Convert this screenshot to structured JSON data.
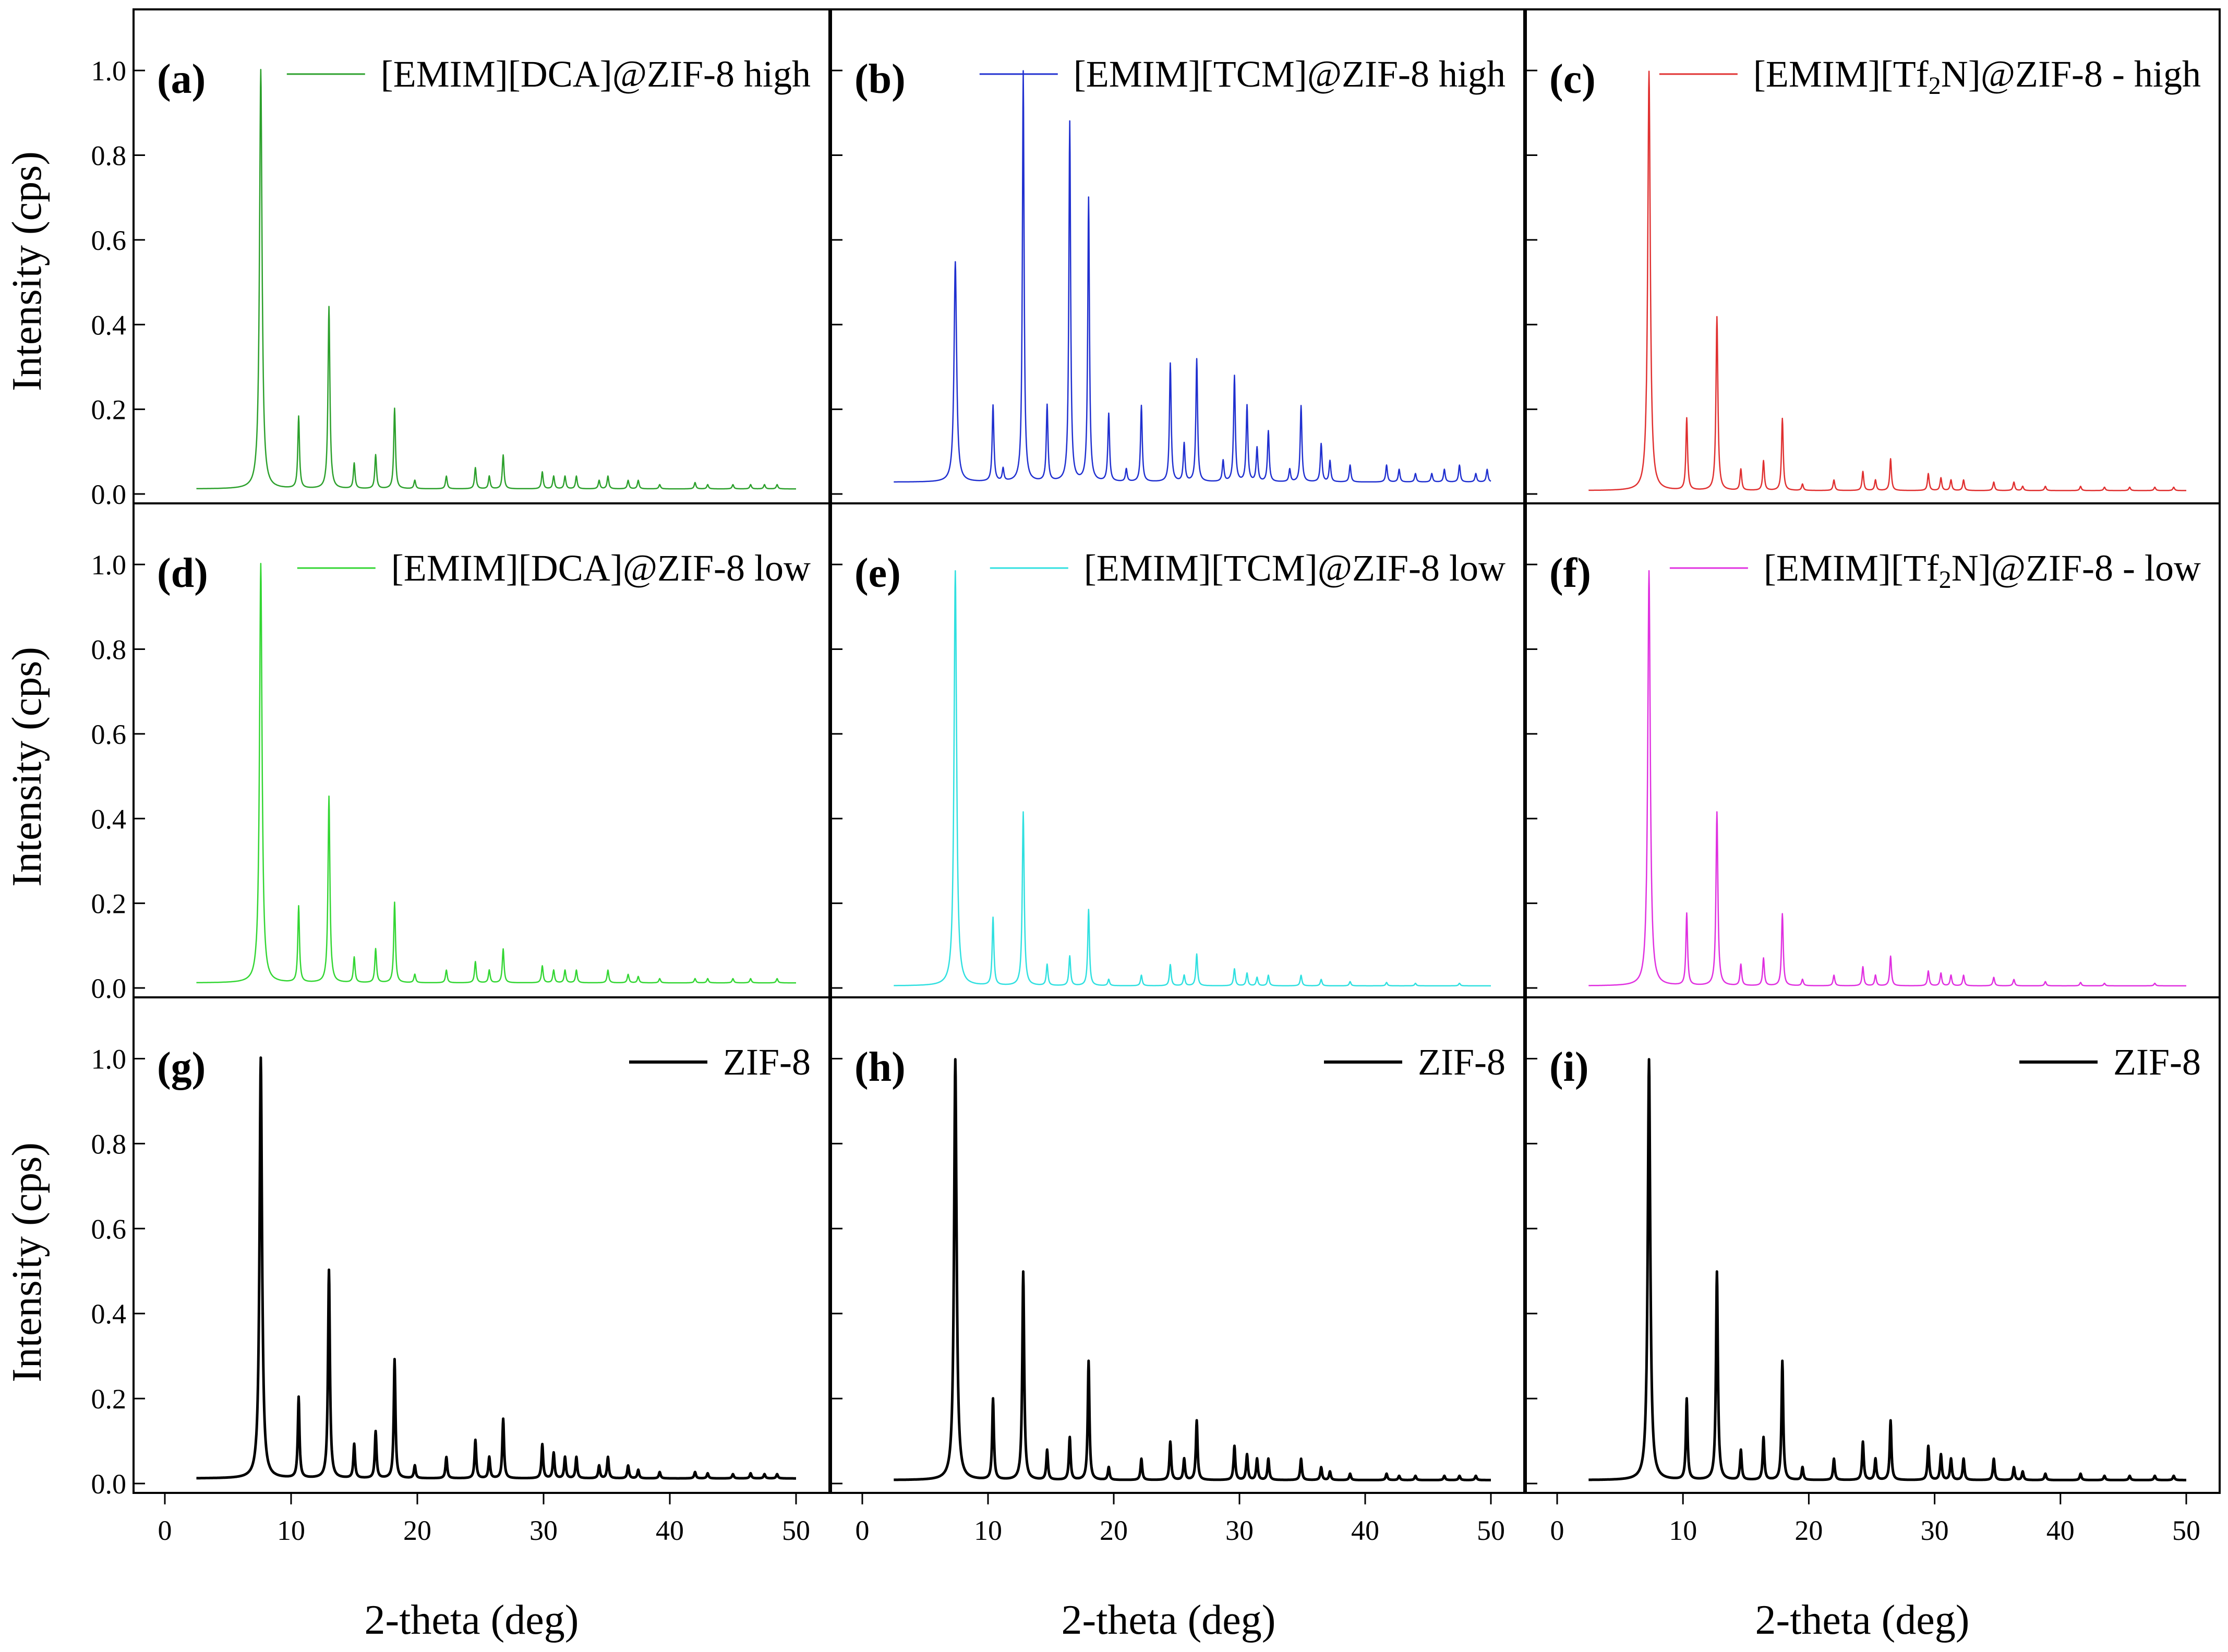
{
  "figure": {
    "y_axis_title": "Intensity (cps)",
    "x_axis_title": "2-theta (deg)"
  },
  "chart_data": {
    "type": "line",
    "xlim": [
      0,
      50
    ],
    "ylim": [
      0,
      1.1
    ],
    "x_ticks": [
      0,
      10,
      20,
      30,
      40,
      50
    ],
    "y_ticks": [
      "0.0",
      "0.2",
      "0.4",
      "0.6",
      "0.8",
      "1.0"
    ],
    "xlabel": "2-theta (deg)",
    "ylabel": "Intensity (cps)",
    "x_start": 2.5,
    "panels": [
      {
        "id": "a",
        "label": "(a)",
        "legend": "[EMIM][DCA]@ZIF-8 high",
        "color": "#2ca02c",
        "baseline": 0.012,
        "peaks": [
          [
            7.6,
            0.99,
            0.12
          ],
          [
            10.6,
            0.17,
            0.08
          ],
          [
            13.0,
            0.43,
            0.09
          ],
          [
            15.0,
            0.06,
            0.08
          ],
          [
            16.7,
            0.08,
            0.08
          ],
          [
            18.2,
            0.19,
            0.08
          ],
          [
            19.8,
            0.02,
            0.08
          ],
          [
            22.3,
            0.03,
            0.08
          ],
          [
            24.6,
            0.05,
            0.08
          ],
          [
            25.7,
            0.03,
            0.08
          ],
          [
            26.8,
            0.08,
            0.08
          ],
          [
            29.9,
            0.04,
            0.08
          ],
          [
            30.8,
            0.03,
            0.08
          ],
          [
            31.7,
            0.03,
            0.08
          ],
          [
            32.6,
            0.03,
            0.08
          ],
          [
            34.4,
            0.02,
            0.08
          ],
          [
            35.1,
            0.03,
            0.08
          ],
          [
            36.7,
            0.02,
            0.08
          ],
          [
            37.5,
            0.02,
            0.08
          ],
          [
            39.2,
            0.01,
            0.08
          ],
          [
            42.0,
            0.015,
            0.08
          ],
          [
            43.0,
            0.01,
            0.08
          ],
          [
            45.0,
            0.01,
            0.08
          ],
          [
            46.4,
            0.01,
            0.08
          ],
          [
            47.5,
            0.01,
            0.08
          ],
          [
            48.5,
            0.01,
            0.08
          ]
        ]
      },
      {
        "id": "b",
        "label": "(b)",
        "legend": "[EMIM][TCM]@ZIF-8 high",
        "color": "#2030d0",
        "baseline": 0.028,
        "peaks": [
          [
            7.4,
            0.52,
            0.12
          ],
          [
            10.4,
            0.18,
            0.08
          ],
          [
            11.2,
            0.03,
            0.08
          ],
          [
            12.8,
            0.97,
            0.08
          ],
          [
            14.7,
            0.18,
            0.08
          ],
          [
            16.5,
            0.85,
            0.08
          ],
          [
            18.0,
            0.67,
            0.08
          ],
          [
            19.6,
            0.16,
            0.08
          ],
          [
            21.0,
            0.03,
            0.08
          ],
          [
            22.2,
            0.18,
            0.08
          ],
          [
            24.5,
            0.28,
            0.08
          ],
          [
            25.6,
            0.09,
            0.08
          ],
          [
            26.6,
            0.29,
            0.08
          ],
          [
            28.7,
            0.05,
            0.08
          ],
          [
            29.6,
            0.25,
            0.08
          ],
          [
            30.6,
            0.18,
            0.08
          ],
          [
            31.4,
            0.08,
            0.08
          ],
          [
            32.3,
            0.12,
            0.08
          ],
          [
            34.0,
            0.03,
            0.08
          ],
          [
            34.9,
            0.18,
            0.08
          ],
          [
            36.5,
            0.09,
            0.08
          ],
          [
            37.2,
            0.05,
            0.08
          ],
          [
            38.8,
            0.04,
            0.08
          ],
          [
            41.7,
            0.04,
            0.08
          ],
          [
            42.7,
            0.03,
            0.08
          ],
          [
            44.0,
            0.02,
            0.08
          ],
          [
            45.3,
            0.02,
            0.08
          ],
          [
            46.3,
            0.03,
            0.08
          ],
          [
            47.5,
            0.04,
            0.08
          ],
          [
            48.8,
            0.02,
            0.08
          ],
          [
            49.7,
            0.03,
            0.08
          ]
        ]
      },
      {
        "id": "c",
        "label": "(c)",
        "legend": "[EMIM][Tf2N]@ZIF-8 - high",
        "color": "#e03030",
        "baseline": 0.008,
        "peaks": [
          [
            7.3,
            0.99,
            0.12
          ],
          [
            10.3,
            0.17,
            0.08
          ],
          [
            12.7,
            0.41,
            0.09
          ],
          [
            14.6,
            0.05,
            0.08
          ],
          [
            16.4,
            0.07,
            0.08
          ],
          [
            17.9,
            0.17,
            0.08
          ],
          [
            19.5,
            0.015,
            0.08
          ],
          [
            22.0,
            0.025,
            0.08
          ],
          [
            24.3,
            0.045,
            0.08
          ],
          [
            25.3,
            0.025,
            0.08
          ],
          [
            26.5,
            0.075,
            0.08
          ],
          [
            29.5,
            0.04,
            0.08
          ],
          [
            30.5,
            0.03,
            0.08
          ],
          [
            31.3,
            0.025,
            0.08
          ],
          [
            32.3,
            0.025,
            0.08
          ],
          [
            34.7,
            0.02,
            0.08
          ],
          [
            36.3,
            0.02,
            0.08
          ],
          [
            37.0,
            0.01,
            0.08
          ],
          [
            38.8,
            0.01,
            0.08
          ],
          [
            41.6,
            0.01,
            0.08
          ],
          [
            43.5,
            0.008,
            0.08
          ],
          [
            45.5,
            0.008,
            0.08
          ],
          [
            47.5,
            0.008,
            0.08
          ],
          [
            49.0,
            0.008,
            0.08
          ]
        ]
      },
      {
        "id": "d",
        "label": "(d)",
        "legend": "[EMIM][DCA]@ZIF-8 low",
        "color": "#33d633",
        "baseline": 0.012,
        "peaks": [
          [
            7.6,
            0.99,
            0.12
          ],
          [
            10.6,
            0.18,
            0.08
          ],
          [
            13.0,
            0.44,
            0.09
          ],
          [
            15.0,
            0.06,
            0.08
          ],
          [
            16.7,
            0.08,
            0.08
          ],
          [
            18.2,
            0.19,
            0.08
          ],
          [
            19.8,
            0.02,
            0.08
          ],
          [
            22.3,
            0.03,
            0.08
          ],
          [
            24.6,
            0.05,
            0.08
          ],
          [
            25.7,
            0.03,
            0.08
          ],
          [
            26.8,
            0.08,
            0.08
          ],
          [
            29.9,
            0.04,
            0.08
          ],
          [
            30.8,
            0.03,
            0.08
          ],
          [
            31.7,
            0.03,
            0.08
          ],
          [
            32.6,
            0.03,
            0.08
          ],
          [
            35.1,
            0.03,
            0.08
          ],
          [
            36.7,
            0.02,
            0.08
          ],
          [
            37.5,
            0.015,
            0.08
          ],
          [
            39.2,
            0.01,
            0.08
          ],
          [
            42.0,
            0.01,
            0.08
          ],
          [
            43.0,
            0.01,
            0.08
          ],
          [
            45.0,
            0.01,
            0.08
          ],
          [
            46.4,
            0.01,
            0.08
          ],
          [
            48.5,
            0.01,
            0.08
          ]
        ]
      },
      {
        "id": "e",
        "label": "(e)",
        "legend": "[EMIM][TCM]@ZIF-8 low",
        "color": "#30e0e0",
        "baseline": 0.005,
        "peaks": [
          [
            7.4,
            0.98,
            0.12
          ],
          [
            10.4,
            0.16,
            0.08
          ],
          [
            12.8,
            0.41,
            0.09
          ],
          [
            14.7,
            0.05,
            0.08
          ],
          [
            16.5,
            0.07,
            0.08
          ],
          [
            18.0,
            0.18,
            0.08
          ],
          [
            19.6,
            0.015,
            0.08
          ],
          [
            22.2,
            0.025,
            0.08
          ],
          [
            24.5,
            0.05,
            0.08
          ],
          [
            25.6,
            0.025,
            0.08
          ],
          [
            26.6,
            0.075,
            0.08
          ],
          [
            29.6,
            0.04,
            0.08
          ],
          [
            30.6,
            0.03,
            0.08
          ],
          [
            31.4,
            0.02,
            0.08
          ],
          [
            32.3,
            0.025,
            0.08
          ],
          [
            34.9,
            0.025,
            0.08
          ],
          [
            36.5,
            0.015,
            0.08
          ],
          [
            38.8,
            0.01,
            0.08
          ],
          [
            41.7,
            0.008,
            0.08
          ],
          [
            44.0,
            0.006,
            0.08
          ],
          [
            47.5,
            0.006,
            0.08
          ]
        ]
      },
      {
        "id": "f",
        "label": "(f)",
        "legend": "[EMIM][Tf2N]@ZIF-8 - low",
        "color": "#e030e0",
        "baseline": 0.005,
        "peaks": [
          [
            7.3,
            0.98,
            0.12
          ],
          [
            10.3,
            0.17,
            0.08
          ],
          [
            12.7,
            0.41,
            0.09
          ],
          [
            14.6,
            0.05,
            0.08
          ],
          [
            16.4,
            0.065,
            0.08
          ],
          [
            17.9,
            0.17,
            0.08
          ],
          [
            19.5,
            0.015,
            0.08
          ],
          [
            22.0,
            0.025,
            0.08
          ],
          [
            24.3,
            0.045,
            0.08
          ],
          [
            25.3,
            0.025,
            0.08
          ],
          [
            26.5,
            0.07,
            0.08
          ],
          [
            29.5,
            0.035,
            0.08
          ],
          [
            30.5,
            0.03,
            0.08
          ],
          [
            31.3,
            0.025,
            0.08
          ],
          [
            32.3,
            0.025,
            0.08
          ],
          [
            34.7,
            0.02,
            0.08
          ],
          [
            36.3,
            0.015,
            0.08
          ],
          [
            38.8,
            0.01,
            0.08
          ],
          [
            41.6,
            0.008,
            0.08
          ],
          [
            43.5,
            0.006,
            0.08
          ],
          [
            47.5,
            0.006,
            0.08
          ]
        ]
      },
      {
        "id": "g",
        "label": "(g)",
        "legend": "ZIF-8",
        "color": "#000000",
        "baseline": 0.012,
        "peaks": [
          [
            7.6,
            0.99,
            0.12
          ],
          [
            10.6,
            0.19,
            0.08
          ],
          [
            13.0,
            0.49,
            0.09
          ],
          [
            15.0,
            0.08,
            0.08
          ],
          [
            16.7,
            0.11,
            0.08
          ],
          [
            18.2,
            0.28,
            0.08
          ],
          [
            19.8,
            0.03,
            0.08
          ],
          [
            22.3,
            0.05,
            0.08
          ],
          [
            24.6,
            0.09,
            0.08
          ],
          [
            25.7,
            0.05,
            0.08
          ],
          [
            26.8,
            0.14,
            0.08
          ],
          [
            29.9,
            0.08,
            0.08
          ],
          [
            30.8,
            0.06,
            0.08
          ],
          [
            31.7,
            0.05,
            0.08
          ],
          [
            32.6,
            0.05,
            0.08
          ],
          [
            34.4,
            0.03,
            0.08
          ],
          [
            35.1,
            0.05,
            0.08
          ],
          [
            36.7,
            0.03,
            0.08
          ],
          [
            37.5,
            0.02,
            0.08
          ],
          [
            39.2,
            0.015,
            0.08
          ],
          [
            42.0,
            0.015,
            0.08
          ],
          [
            43.0,
            0.012,
            0.08
          ],
          [
            45.0,
            0.01,
            0.08
          ],
          [
            46.4,
            0.012,
            0.08
          ],
          [
            47.5,
            0.01,
            0.08
          ],
          [
            48.5,
            0.01,
            0.08
          ]
        ]
      },
      {
        "id": "h",
        "label": "(h)",
        "legend": "ZIF-8",
        "color": "#000000",
        "baseline": 0.008,
        "peaks": [
          [
            7.4,
            0.99,
            0.12
          ],
          [
            10.4,
            0.19,
            0.08
          ],
          [
            12.8,
            0.49,
            0.09
          ],
          [
            14.7,
            0.07,
            0.08
          ],
          [
            16.5,
            0.1,
            0.08
          ],
          [
            18.0,
            0.28,
            0.08
          ],
          [
            19.6,
            0.03,
            0.08
          ],
          [
            22.2,
            0.05,
            0.08
          ],
          [
            24.5,
            0.09,
            0.08
          ],
          [
            25.6,
            0.05,
            0.08
          ],
          [
            26.6,
            0.14,
            0.08
          ],
          [
            29.6,
            0.08,
            0.08
          ],
          [
            30.6,
            0.06,
            0.08
          ],
          [
            31.4,
            0.05,
            0.08
          ],
          [
            32.3,
            0.05,
            0.08
          ],
          [
            34.9,
            0.05,
            0.08
          ],
          [
            36.5,
            0.03,
            0.08
          ],
          [
            37.2,
            0.02,
            0.08
          ],
          [
            38.8,
            0.015,
            0.08
          ],
          [
            41.7,
            0.015,
            0.08
          ],
          [
            42.7,
            0.01,
            0.08
          ],
          [
            44.0,
            0.01,
            0.08
          ],
          [
            46.3,
            0.01,
            0.08
          ],
          [
            47.5,
            0.01,
            0.08
          ],
          [
            48.8,
            0.01,
            0.08
          ]
        ]
      },
      {
        "id": "i",
        "label": "(i)",
        "legend": "ZIF-8",
        "color": "#000000",
        "baseline": 0.008,
        "peaks": [
          [
            7.3,
            0.99,
            0.12
          ],
          [
            10.3,
            0.19,
            0.08
          ],
          [
            12.7,
            0.49,
            0.09
          ],
          [
            14.6,
            0.07,
            0.08
          ],
          [
            16.4,
            0.1,
            0.08
          ],
          [
            17.9,
            0.28,
            0.08
          ],
          [
            19.5,
            0.03,
            0.08
          ],
          [
            22.0,
            0.05,
            0.08
          ],
          [
            24.3,
            0.09,
            0.08
          ],
          [
            25.3,
            0.05,
            0.08
          ],
          [
            26.5,
            0.14,
            0.08
          ],
          [
            29.5,
            0.08,
            0.08
          ],
          [
            30.5,
            0.06,
            0.08
          ],
          [
            31.3,
            0.05,
            0.08
          ],
          [
            32.3,
            0.05,
            0.08
          ],
          [
            34.7,
            0.05,
            0.08
          ],
          [
            36.3,
            0.03,
            0.08
          ],
          [
            37.0,
            0.02,
            0.08
          ],
          [
            38.8,
            0.015,
            0.08
          ],
          [
            41.6,
            0.015,
            0.08
          ],
          [
            43.5,
            0.01,
            0.08
          ],
          [
            45.5,
            0.01,
            0.08
          ],
          [
            47.5,
            0.01,
            0.08
          ],
          [
            49.0,
            0.01,
            0.08
          ]
        ]
      }
    ]
  }
}
